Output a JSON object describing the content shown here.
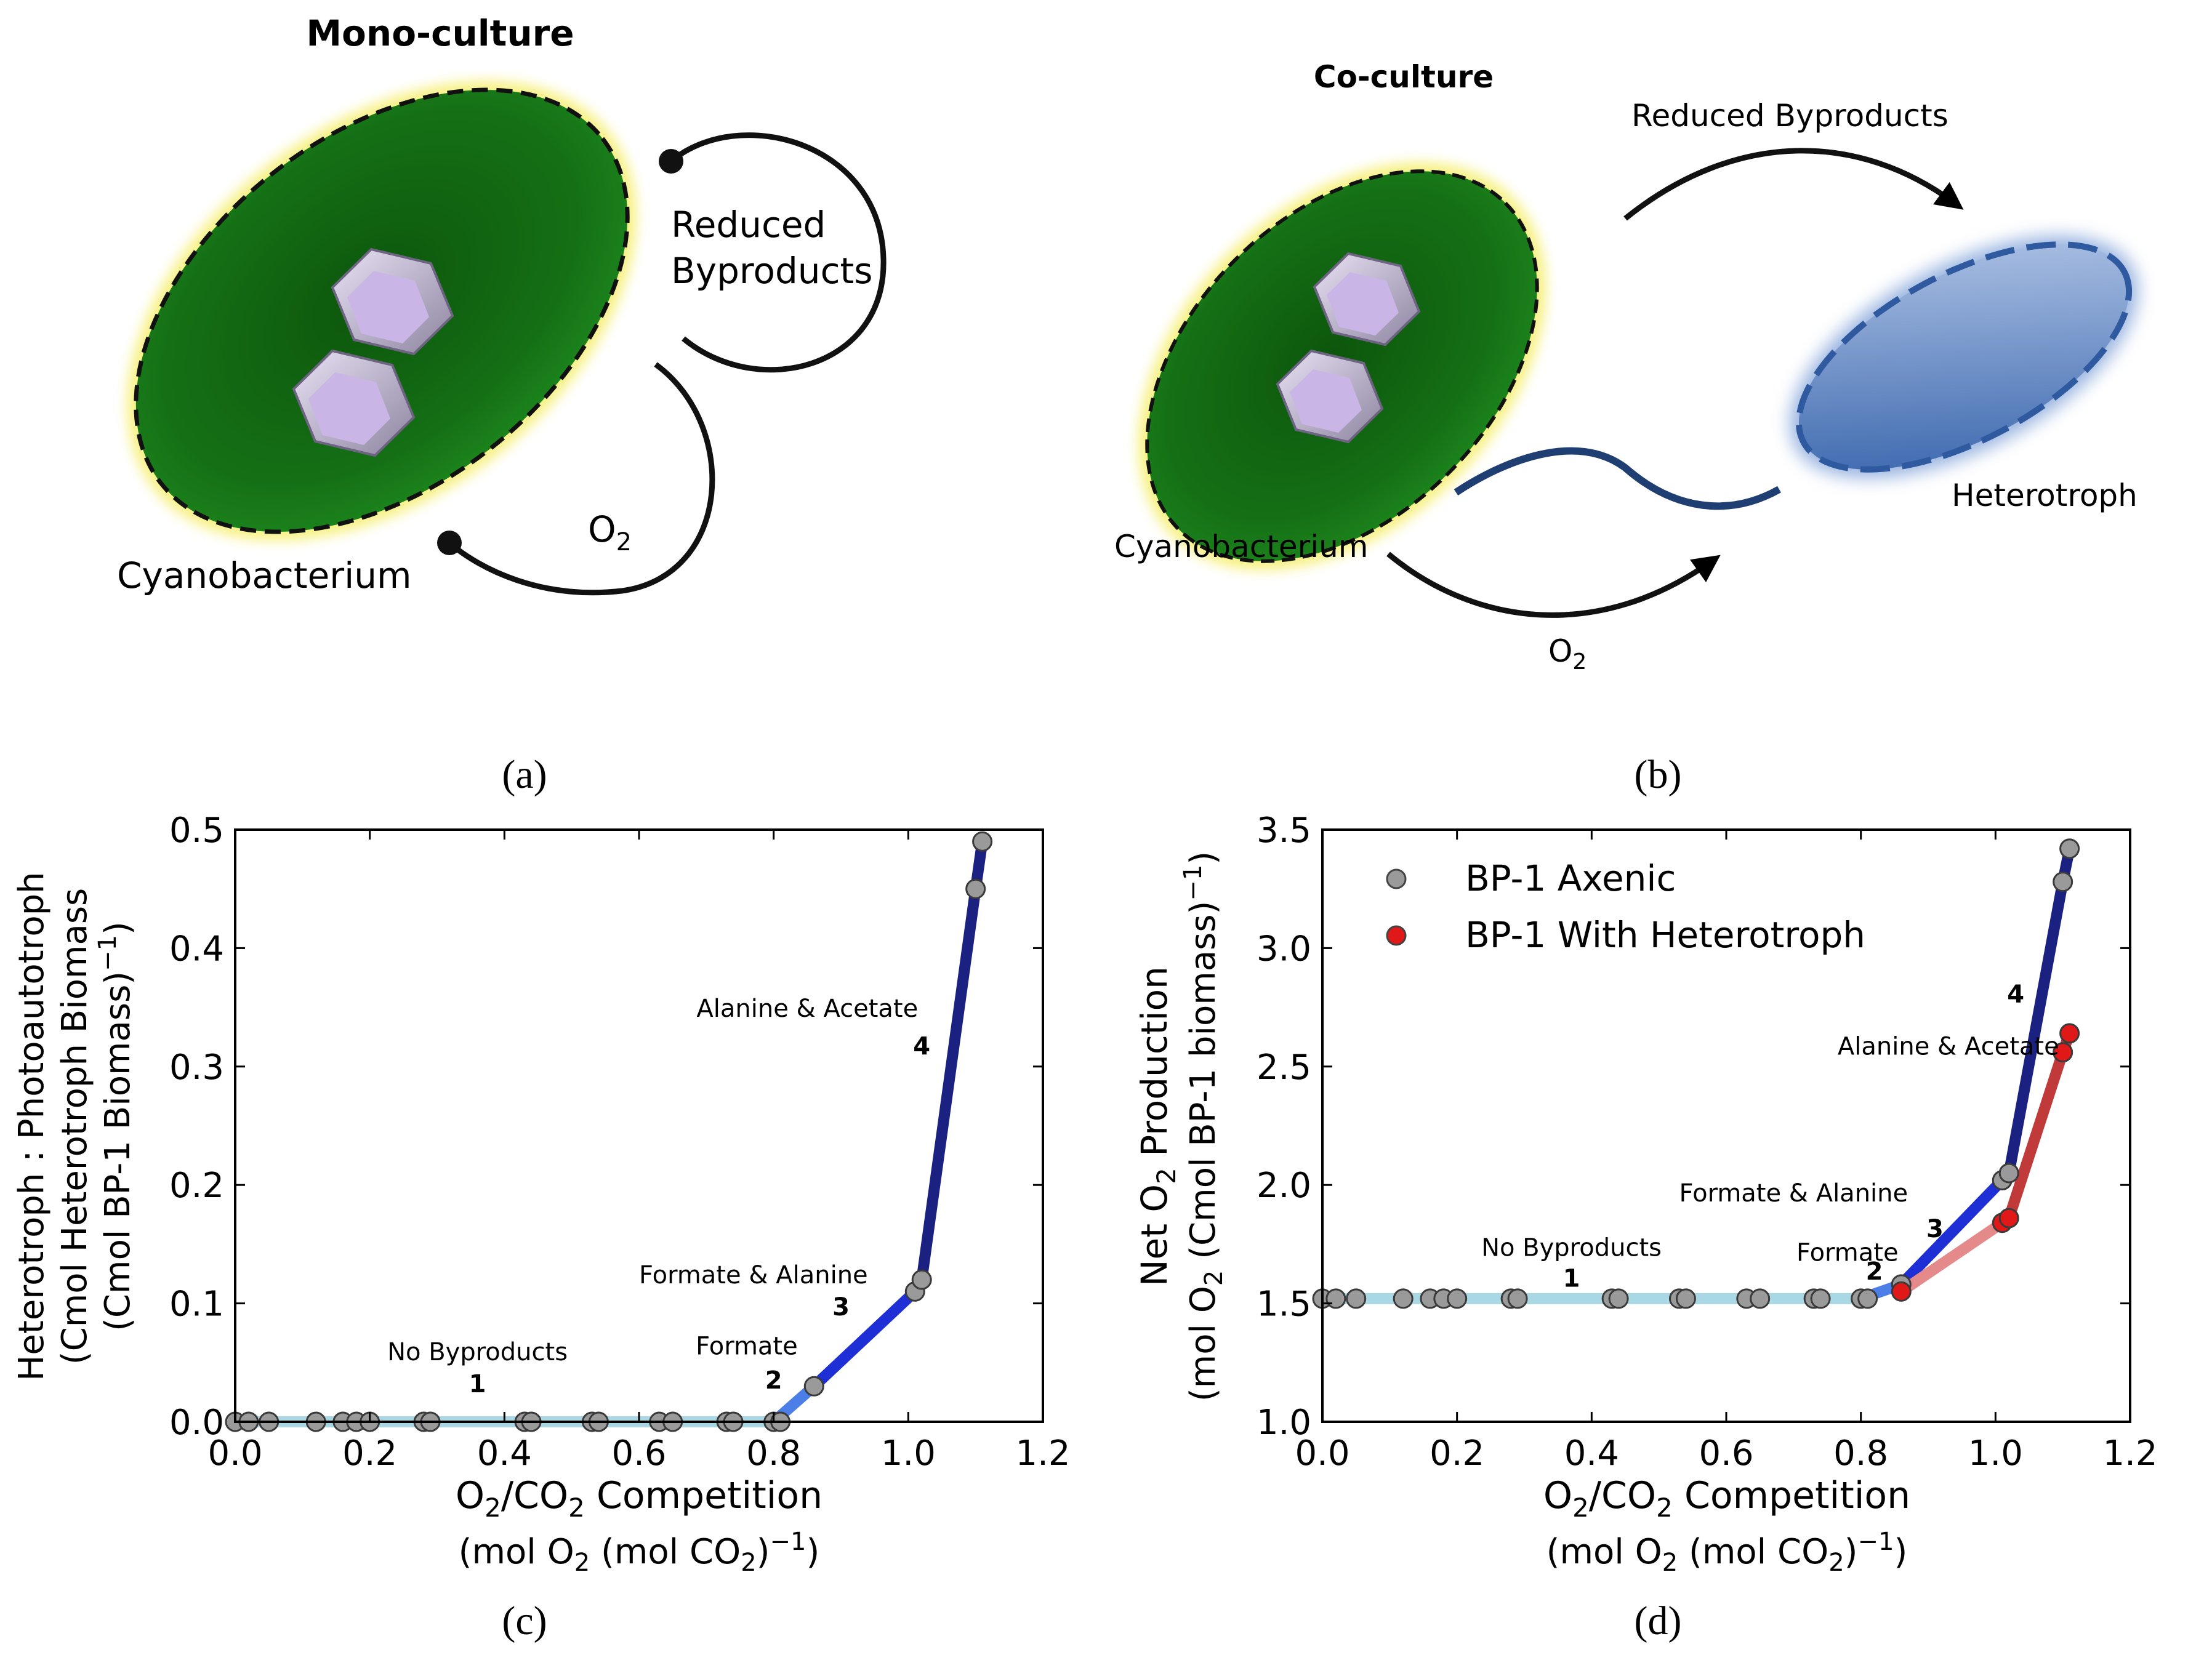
{
  "panels": {
    "a": {
      "label": "(a)",
      "title": "Mono-culture",
      "cell_label": "Cyanobacterium",
      "loop_byproducts": [
        "Reduced",
        "Byproducts"
      ],
      "loop_o2": "O2"
    },
    "b": {
      "label": "(b)",
      "title": "Co-culture",
      "arrow_byproducts": "Reduced Byproducts",
      "cell_label": "Cyanobacterium",
      "partner_label": "Heterotroph",
      "arrow_o2": "O2"
    },
    "c": {
      "label": "(c)"
    },
    "d": {
      "label": "(d)"
    }
  },
  "colors": {
    "cyano_fill": "#1a7a1a",
    "cyano_glow": "#f4ec5a",
    "heterotroph_fill": "#4a77b8",
    "seg1": "#a9d8e4",
    "seg2": "#4c7ee8",
    "seg3": "#1f2fd6",
    "seg4": "#1b2180",
    "heterotroph_series": "#c03a3a",
    "grey_point": "#9a9a9a",
    "red_point": "#e01818"
  },
  "chart_data": [
    {
      "id": "c",
      "type": "line",
      "xlabel_line1": "O2/CO2  Competition",
      "xlabel_line2": "(mol O2  (mol CO2)-1)",
      "ylabel_line1": "Heterotroph : Photoautotroph",
      "ylabel_line2": "(Cmol Heterotroph Biomass",
      "ylabel_line3": "(Cmol BP-1 Biomass)-1)",
      "xlim": [
        0.0,
        1.2
      ],
      "ylim": [
        0.0,
        0.5
      ],
      "xticks": [
        0.0,
        0.2,
        0.4,
        0.6,
        0.8,
        1.0,
        1.2
      ],
      "xtick_labels": [
        "0.0",
        "0.2",
        "0.4",
        "0.6",
        "0.8",
        "1.0",
        "1.2"
      ],
      "yticks": [
        0.0,
        0.1,
        0.2,
        0.3,
        0.4,
        0.5
      ],
      "ytick_labels": [
        "0.0",
        "0.1",
        "0.2",
        "0.3",
        "0.4",
        "0.5"
      ],
      "segments": [
        {
          "id": 1,
          "color": "#a9d8e4",
          "x": [
            0.0,
            0.8
          ],
          "y": [
            0.0,
            0.0
          ]
        },
        {
          "id": 2,
          "color": "#4c7ee8",
          "x": [
            0.8,
            0.86
          ],
          "y": [
            0.0,
            0.03
          ]
        },
        {
          "id": 3,
          "color": "#1f2fd6",
          "x": [
            0.86,
            1.01
          ],
          "y": [
            0.03,
            0.11
          ]
        },
        {
          "id": 4,
          "color": "#1b2180",
          "x": [
            1.01,
            1.02,
            1.1,
            1.11
          ],
          "y": [
            0.11,
            0.12,
            0.45,
            0.49
          ]
        }
      ],
      "series": [
        {
          "name": "BP-1 Axenic",
          "color": "#9a9a9a",
          "x": [
            0.0,
            0.02,
            0.05,
            0.12,
            0.16,
            0.18,
            0.2,
            0.28,
            0.29,
            0.43,
            0.44,
            0.53,
            0.54,
            0.63,
            0.65,
            0.73,
            0.74,
            0.8,
            0.81,
            0.86,
            1.01,
            1.02,
            1.1,
            1.11
          ],
          "y": [
            0.0,
            0.0,
            0.0,
            0.0,
            0.0,
            0.0,
            0.0,
            0.0,
            0.0,
            0.0,
            0.0,
            0.0,
            0.0,
            0.0,
            0.0,
            0.0,
            0.0,
            0.0,
            0.0,
            0.03,
            0.11,
            0.12,
            0.45,
            0.49
          ]
        }
      ],
      "annotations": [
        {
          "text": "No Byproducts",
          "x": 0.36,
          "y": 0.052
        },
        {
          "text": "1",
          "x": 0.36,
          "y": 0.025,
          "bold": true
        },
        {
          "text": "Formate",
          "x": 0.76,
          "y": 0.057
        },
        {
          "text": "2",
          "x": 0.8,
          "y": 0.028,
          "bold": true
        },
        {
          "text": "Formate & Alanine",
          "x": 0.77,
          "y": 0.117
        },
        {
          "text": "3",
          "x": 0.9,
          "y": 0.09,
          "bold": true
        },
        {
          "text": "Alanine & Acetate",
          "x": 0.85,
          "y": 0.342
        },
        {
          "text": "4",
          "x": 1.02,
          "y": 0.31,
          "bold": true
        }
      ]
    },
    {
      "id": "d",
      "type": "line",
      "xlabel_line1": "O2/CO2  Competition",
      "xlabel_line2": "(mol O2  (mol CO2)-1)",
      "ylabel_line1": "Net O2 Production",
      "ylabel_line2": "(mol O2  (Cmol BP-1 biomass)-1)",
      "xlim": [
        0.0,
        1.2
      ],
      "ylim": [
        1.0,
        3.5
      ],
      "xticks": [
        0.0,
        0.2,
        0.4,
        0.6,
        0.8,
        1.0,
        1.2
      ],
      "xtick_labels": [
        "0.0",
        "0.2",
        "0.4",
        "0.6",
        "0.8",
        "1.0",
        "1.2"
      ],
      "yticks": [
        1.0,
        1.5,
        2.0,
        2.5,
        3.0,
        3.5
      ],
      "ytick_labels": [
        "1.0",
        "1.5",
        "2.0",
        "2.5",
        "3.0",
        "3.5"
      ],
      "legend": {
        "placement": "top-left",
        "entries": [
          "BP-1 Axenic",
          "BP-1 With Heterotroph"
        ]
      },
      "segments": [
        {
          "id": 1,
          "color": "#a9d8e4",
          "x": [
            0.0,
            0.8
          ],
          "y": [
            1.52,
            1.52
          ]
        },
        {
          "id": 2,
          "color": "#4c7ee8",
          "x": [
            0.8,
            0.86
          ],
          "y": [
            1.52,
            1.58
          ]
        },
        {
          "id": 3,
          "color": "#1f2fd6",
          "x": [
            0.86,
            1.01
          ],
          "y": [
            1.58,
            2.02
          ]
        },
        {
          "id": 4,
          "color": "#1b2180",
          "x": [
            1.01,
            1.02,
            1.1,
            1.11
          ],
          "y": [
            2.02,
            2.05,
            3.28,
            3.42
          ]
        },
        {
          "id": 5,
          "color": "#e58a8a",
          "x": [
            0.86,
            1.01
          ],
          "y": [
            1.55,
            1.84
          ]
        },
        {
          "id": 6,
          "color": "#c03a3a",
          "x": [
            1.01,
            1.02,
            1.1,
            1.11
          ],
          "y": [
            1.84,
            1.86,
            2.56,
            2.64
          ]
        }
      ],
      "series": [
        {
          "name": "BP-1 Axenic",
          "color": "#9a9a9a",
          "x": [
            0.0,
            0.02,
            0.05,
            0.12,
            0.16,
            0.18,
            0.2,
            0.28,
            0.29,
            0.43,
            0.44,
            0.53,
            0.54,
            0.63,
            0.65,
            0.73,
            0.74,
            0.8,
            0.81,
            0.86,
            1.01,
            1.02,
            1.1,
            1.11
          ],
          "y": [
            1.52,
            1.52,
            1.52,
            1.52,
            1.52,
            1.52,
            1.52,
            1.52,
            1.52,
            1.52,
            1.52,
            1.52,
            1.52,
            1.52,
            1.52,
            1.52,
            1.52,
            1.52,
            1.52,
            1.58,
            2.02,
            2.05,
            3.28,
            3.42
          ]
        },
        {
          "name": "BP-1 With Heterotroph",
          "color": "#e01818",
          "x": [
            0.86,
            1.01,
            1.02,
            1.1,
            1.11
          ],
          "y": [
            1.55,
            1.84,
            1.86,
            2.56,
            2.64
          ]
        }
      ],
      "annotations": [
        {
          "text": "No Byproducts",
          "x": 0.37,
          "y": 1.7
        },
        {
          "text": "1",
          "x": 0.37,
          "y": 1.57,
          "bold": true
        },
        {
          "text": "Formate",
          "x": 0.78,
          "y": 1.68
        },
        {
          "text": "2",
          "x": 0.82,
          "y": 1.6,
          "bold": true
        },
        {
          "text": "Formate & Alanine",
          "x": 0.7,
          "y": 1.93
        },
        {
          "text": "3",
          "x": 0.91,
          "y": 1.78,
          "bold": true
        },
        {
          "text": "Alanine & Acetate",
          "x": 0.93,
          "y": 2.55
        },
        {
          "text": "4",
          "x": 1.03,
          "y": 2.77,
          "bold": true
        }
      ]
    }
  ]
}
